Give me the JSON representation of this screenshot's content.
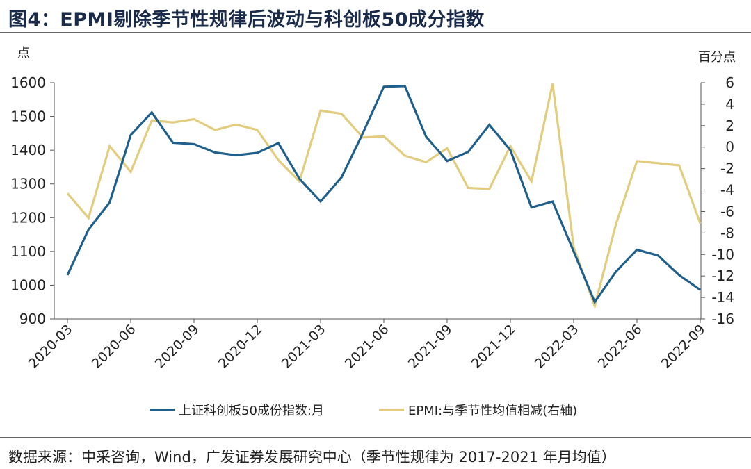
{
  "header": {
    "title": "图4：EPMI剔除季节性规律后波动与科创板50成分指数"
  },
  "footer": {
    "source": "数据来源：中采咨询，Wind，广发证券发展研究中心（季节性规律为 2017-2021 年月均值）"
  },
  "chart_data": {
    "type": "line",
    "x": [
      "2020-03",
      "2020-04",
      "2020-05",
      "2020-06",
      "2020-07",
      "2020-08",
      "2020-09",
      "2020-10",
      "2020-11",
      "2020-12",
      "2021-01",
      "2021-02",
      "2021-03",
      "2021-04",
      "2021-05",
      "2021-06",
      "2021-07",
      "2021-08",
      "2021-09",
      "2021-10",
      "2021-11",
      "2021-12",
      "2022-01",
      "2022-02",
      "2022-03",
      "2022-04",
      "2022-05",
      "2022-06",
      "2022-07",
      "2022-08",
      "2022-09"
    ],
    "x_tick_labels": [
      "2020-03",
      "2020-06",
      "2020-09",
      "2020-12",
      "2021-03",
      "2021-06",
      "2021-09",
      "2021-12",
      "2022-03",
      "2022-06",
      "2022-09"
    ],
    "left_axis": {
      "unit_label": "点",
      "ylim": [
        900,
        1600
      ],
      "ticks": [
        900,
        1000,
        1100,
        1200,
        1300,
        1400,
        1500,
        1600
      ]
    },
    "right_axis": {
      "unit_label": "百分点",
      "ylim": [
        -16,
        6
      ],
      "ticks": [
        -16,
        -14,
        -12,
        -10,
        -8,
        -6,
        -4,
        -2,
        0,
        2,
        4,
        6
      ]
    },
    "series": [
      {
        "name": "上证科创板50成份指数:月",
        "axis": "left",
        "color": "#1f5f8b",
        "values": [
          1030,
          1165,
          1245,
          1445,
          1512,
          1422,
          1418,
          1393,
          1385,
          1392,
          1421,
          1315,
          1248,
          1320,
          1450,
          1588,
          1590,
          1440,
          1368,
          1395,
          1475,
          1400,
          1230,
          1248,
          1100,
          950,
          1040,
          1105,
          1088,
          1030,
          986
        ]
      },
      {
        "name": "EPMI:与季节性均值相减(右轴)",
        "axis": "right",
        "color": "#e2cc7e",
        "values": [
          -4.3,
          -6.6,
          0.1,
          -2.3,
          2.5,
          2.3,
          2.6,
          1.6,
          2.1,
          1.6,
          -1.2,
          -3.2,
          3.4,
          3.1,
          0.9,
          1.0,
          -0.8,
          -1.4,
          -0.1,
          -3.8,
          -3.9,
          0.1,
          -3.2,
          5.9,
          -9.3,
          -14.8,
          -7.2,
          -1.3,
          -1.5,
          -1.7,
          -7.1
        ]
      }
    ],
    "grid": false,
    "legend_position": "bottom"
  }
}
